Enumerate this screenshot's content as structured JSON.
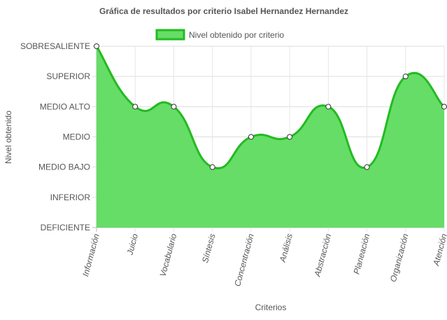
{
  "chart_data": {
    "type": "area",
    "title": "Gráfica de resultados por criterio Isabel Hernandez Hernandez",
    "xlabel": "Criterios",
    "ylabel": "Nivel obtenido",
    "categories": [
      "Información",
      "Juicio",
      "Vocabulario",
      "Síntesis",
      "Concentración",
      "Análisis",
      "Abstracción",
      "Planeación",
      "Organización",
      "Atención"
    ],
    "y_levels": [
      "DEFICIENTE",
      "INFERIOR",
      "MEDIO BAJO",
      "MEDIO",
      "MEDIO ALTO",
      "SUPERIOR",
      "SOBRESALIENTE"
    ],
    "ylim": [
      0,
      6
    ],
    "series": [
      {
        "name": "Nivel obtenido por criterio",
        "values": [
          6,
          4,
          4,
          2,
          3,
          3,
          4,
          2,
          5,
          4
        ],
        "color": "#22bb22",
        "fill": "#66dd66"
      }
    ],
    "grid": true,
    "legend_position": "top-center"
  }
}
